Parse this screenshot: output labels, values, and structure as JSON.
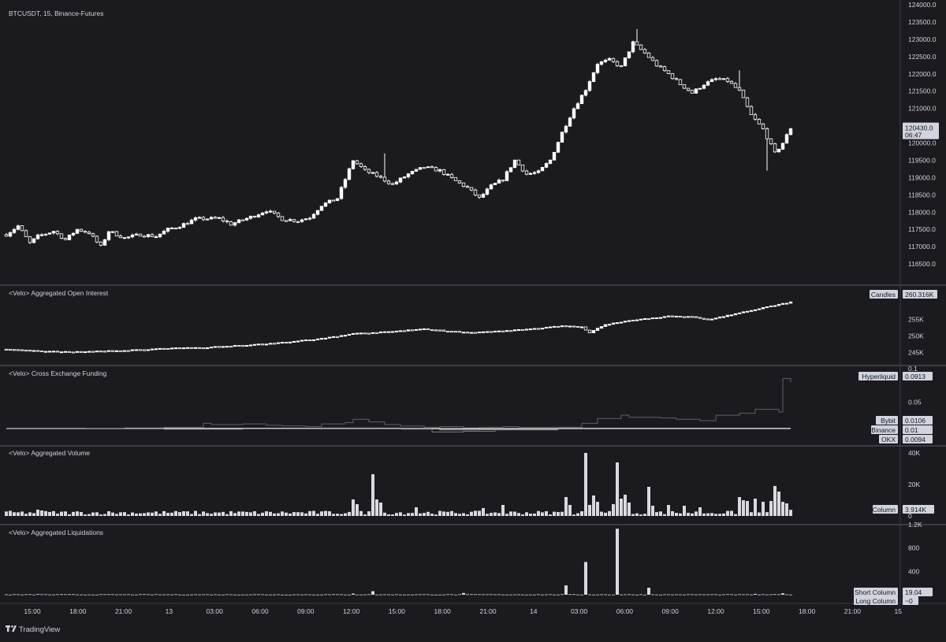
{
  "header": {
    "symbol": "BTCUSDT, 15, Binance-Futures"
  },
  "footer": {
    "brand": "TradingView"
  },
  "colors": {
    "bg": "#1b1a1e",
    "sep": "#5d606b",
    "candle": "#ffffff",
    "text": "#d1d4dc"
  },
  "time_axis": [
    "15:00",
    "18:00",
    "21:00",
    "13",
    "03:00",
    "06:00",
    "09:00",
    "12:00",
    "15:00",
    "18:00",
    "21:00",
    "14",
    "03:00",
    "06:00",
    "09:00",
    "12:00",
    "15:00",
    "18:00",
    "21:00",
    "15"
  ],
  "chart_data": [
    {
      "id": "price",
      "type": "candlestick",
      "title": "BTCUSDT, 15, Binance-Futures",
      "ylim": [
        116000,
        124000
      ],
      "y_ticks": [
        116500,
        117000,
        117500,
        118000,
        118500,
        119000,
        119500,
        120000,
        120500,
        121000,
        121500,
        122000,
        122500,
        123000,
        123500,
        124000
      ],
      "last_price": "120430.0",
      "countdown": "06:47",
      "close_anchors": [
        [
          0,
          117350
        ],
        [
          3,
          117600
        ],
        [
          6,
          117100
        ],
        [
          8,
          117300
        ],
        [
          12,
          117450
        ],
        [
          15,
          117200
        ],
        [
          18,
          117500
        ],
        [
          21,
          117400
        ],
        [
          24,
          117000
        ],
        [
          26,
          117450
        ],
        [
          30,
          117250
        ],
        [
          34,
          117350
        ],
        [
          38,
          117300
        ],
        [
          41,
          117500
        ],
        [
          44,
          117600
        ],
        [
          48,
          117800
        ],
        [
          54,
          117820
        ],
        [
          57,
          117650
        ],
        [
          63,
          117900
        ],
        [
          66,
          118050
        ],
        [
          70,
          117800
        ],
        [
          74,
          117750
        ],
        [
          77,
          117850
        ],
        [
          80,
          118200
        ],
        [
          84,
          118400
        ],
        [
          88,
          119500
        ],
        [
          91,
          119200
        ],
        [
          94,
          119050
        ],
        [
          98,
          118800
        ],
        [
          102,
          119100
        ],
        [
          106,
          119300
        ],
        [
          110,
          119200
        ],
        [
          114,
          118900
        ],
        [
          117,
          118700
        ],
        [
          120,
          118400
        ],
        [
          123,
          118750
        ],
        [
          126,
          118950
        ],
        [
          129,
          119500
        ],
        [
          132,
          119100
        ],
        [
          135,
          119150
        ],
        [
          138,
          119500
        ],
        [
          141,
          120300
        ],
        [
          144,
          121000
        ],
        [
          147,
          121550
        ],
        [
          150,
          122300
        ],
        [
          153,
          122400
        ],
        [
          156,
          122200
        ],
        [
          159,
          122900
        ],
        [
          162,
          122600
        ],
        [
          165,
          122250
        ],
        [
          168,
          122000
        ],
        [
          171,
          121700
        ],
        [
          174,
          121450
        ],
        [
          177,
          121700
        ],
        [
          180,
          121850
        ],
        [
          183,
          121800
        ],
        [
          186,
          121500
        ],
        [
          189,
          120800
        ],
        [
          192,
          120400
        ],
        [
          195,
          119700
        ],
        [
          197,
          120000
        ],
        [
          199,
          120430
        ]
      ],
      "wick_extra": [
        [
          96,
          119700
        ],
        [
          160,
          123300
        ],
        [
          186,
          122100
        ],
        [
          193,
          119200
        ]
      ],
      "n": 200
    },
    {
      "id": "oi",
      "type": "candlestick",
      "title": "<Velo> Aggregated Open Interest",
      "ylim": [
        242000,
        264000
      ],
      "y_ticks": [
        245000,
        250000,
        255000
      ],
      "y_tick_labels": [
        "245K",
        "250K",
        "255K"
      ],
      "tag_name": "Candles",
      "tag_value": "260.316K",
      "close_anchors": [
        [
          0,
          246000
        ],
        [
          10,
          245300
        ],
        [
          20,
          245200
        ],
        [
          30,
          245600
        ],
        [
          40,
          246200
        ],
        [
          50,
          246500
        ],
        [
          60,
          247200
        ],
        [
          70,
          248000
        ],
        [
          80,
          249200
        ],
        [
          88,
          250700
        ],
        [
          96,
          251200
        ],
        [
          106,
          252100
        ],
        [
          112,
          251500
        ],
        [
          118,
          251000
        ],
        [
          126,
          251500
        ],
        [
          134,
          252200
        ],
        [
          140,
          253000
        ],
        [
          146,
          252800
        ],
        [
          148,
          251000
        ],
        [
          152,
          253500
        ],
        [
          160,
          255000
        ],
        [
          168,
          256000
        ],
        [
          174,
          255800
        ],
        [
          178,
          255000
        ],
        [
          184,
          256500
        ],
        [
          190,
          258000
        ],
        [
          195,
          259300
        ],
        [
          199,
          260316
        ]
      ],
      "n": 200
    },
    {
      "id": "funding",
      "type": "line",
      "title": "<Velo> Cross Exchange Funding",
      "ylim": [
        -0.01,
        0.1
      ],
      "y_ticks": [
        0.05,
        0.1
      ],
      "y_tick_labels": [
        "0.05",
        "0.1"
      ],
      "series": [
        {
          "name": "Hyperliquid",
          "value": "0.0913",
          "color": "#5d606b",
          "x": [
            30,
            35,
            40,
            50,
            52,
            60,
            66,
            70,
            76,
            80,
            86,
            88,
            92,
            96,
            100,
            106,
            110,
            116,
            120,
            126,
            130,
            140,
            146,
            150,
            156,
            158,
            166,
            170,
            176,
            180,
            186,
            190,
            196,
            197,
            199
          ],
          "y": [
            0.011,
            0.011,
            0.012,
            0.018,
            0.016,
            0.017,
            0.015,
            0.014,
            0.013,
            0.017,
            0.019,
            0.024,
            0.02,
            0.016,
            0.014,
            0.012,
            0.013,
            0.011,
            0.012,
            0.013,
            0.012,
            0.012,
            0.018,
            0.025,
            0.03,
            0.027,
            0.026,
            0.024,
            0.022,
            0.03,
            0.033,
            0.039,
            0.035,
            0.085,
            0.08
          ]
        },
        {
          "name": "Bybit",
          "value": "0.0106",
          "color": "#9598a1",
          "x": [
            0,
            20,
            40,
            60,
            80,
            100,
            110,
            120,
            140,
            160,
            180,
            199
          ],
          "y": [
            0.0105,
            0.0103,
            0.0105,
            0.0106,
            0.0108,
            0.0102,
            0.008,
            0.0085,
            0.0106,
            0.0106,
            0.0106,
            0.0106
          ]
        },
        {
          "name": "Binance",
          "value": "0.01",
          "color": "#ffffff",
          "x": [
            0,
            199
          ],
          "y": [
            0.01,
            0.01
          ]
        },
        {
          "name": "OKX",
          "value": "0.0094",
          "color": "#787b86",
          "x": [
            0,
            30,
            40,
            60,
            80,
            100,
            108,
            116,
            124,
            140,
            160,
            180,
            199
          ],
          "y": [
            0.01,
            0.0096,
            0.009,
            0.0095,
            0.0098,
            0.0092,
            0.005,
            0.006,
            0.008,
            0.0094,
            0.0094,
            0.0094,
            0.0094
          ]
        }
      ]
    },
    {
      "id": "volume",
      "type": "bar",
      "title": "<Velo> Aggregated Volume",
      "ylim": [
        0,
        42000
      ],
      "y_ticks": [
        0,
        20000,
        40000
      ],
      "y_tick_labels": [
        "0",
        "20K",
        "40K"
      ],
      "tag_name": "Column",
      "tag_value": "3.914K",
      "base": 1500,
      "spikes": [
        [
          8,
          4000
        ],
        [
          9,
          3500
        ],
        [
          45,
          3000
        ],
        [
          88,
          10500
        ],
        [
          89,
          7500
        ],
        [
          93,
          26500
        ],
        [
          94,
          10500
        ],
        [
          95,
          8500
        ],
        [
          104,
          5500
        ],
        [
          121,
          5000
        ],
        [
          126,
          7000
        ],
        [
          142,
          12000
        ],
        [
          143,
          7000
        ],
        [
          146,
          3000
        ],
        [
          147,
          40000
        ],
        [
          148,
          7000
        ],
        [
          149,
          13000
        ],
        [
          150,
          9000
        ],
        [
          154,
          7500
        ],
        [
          155,
          34000
        ],
        [
          156,
          11000
        ],
        [
          157,
          13500
        ],
        [
          158,
          8500
        ],
        [
          163,
          18500
        ],
        [
          164,
          6500
        ],
        [
          168,
          7000
        ],
        [
          172,
          6500
        ],
        [
          176,
          5500
        ],
        [
          186,
          12000
        ],
        [
          187,
          10000
        ],
        [
          188,
          9500
        ],
        [
          190,
          11000
        ],
        [
          192,
          9000
        ],
        [
          194,
          9500
        ],
        [
          195,
          19000
        ],
        [
          196,
          15500
        ],
        [
          197,
          9000
        ],
        [
          198,
          8000
        ],
        [
          199,
          3914
        ]
      ],
      "n": 200
    },
    {
      "id": "liquidations",
      "type": "bar",
      "title": "<Velo> Aggregated Liquidations",
      "ylim": [
        0,
        1200
      ],
      "y_ticks": [
        400,
        800,
        1200
      ],
      "y_tick_labels": [
        "400",
        "800",
        "1.2K"
      ],
      "tags": [
        {
          "name": "Short Column",
          "value": "19.04"
        },
        {
          "name": "Long Column",
          "value": "~0"
        }
      ],
      "base": 5,
      "spikes": [
        [
          8,
          12
        ],
        [
          88,
          20
        ],
        [
          93,
          60
        ],
        [
          116,
          30
        ],
        [
          142,
          160
        ],
        [
          147,
          560
        ],
        [
          155,
          1130
        ],
        [
          163,
          120
        ],
        [
          190,
          15
        ],
        [
          197,
          25
        ]
      ],
      "n": 200
    }
  ]
}
